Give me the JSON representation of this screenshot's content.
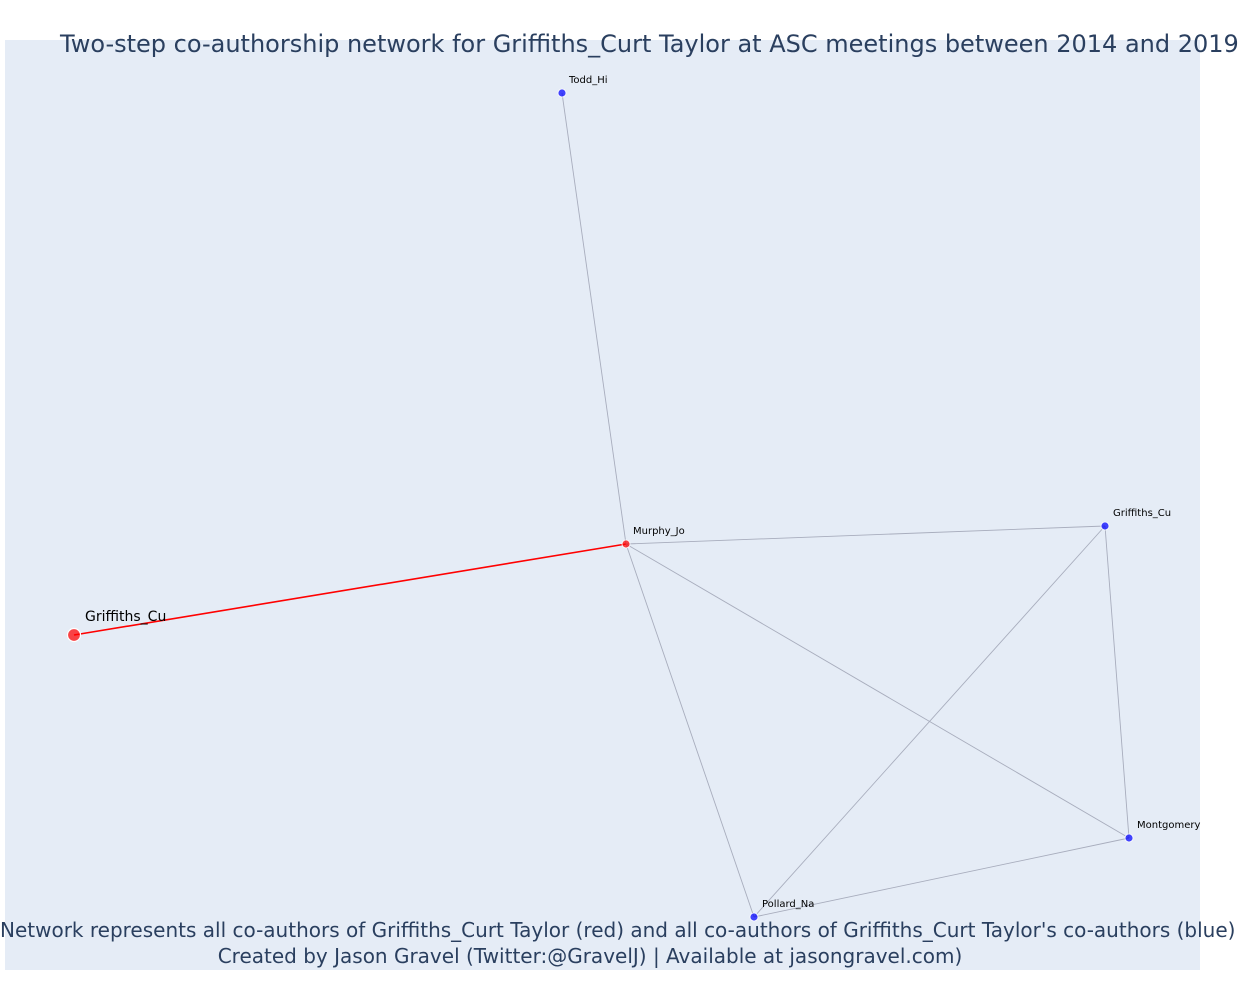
{
  "title": "Two-step co-authorship network for Griffiths_Curt Taylor at ASC meetings between 2014 and 2019",
  "caption": {
    "line1": "Network represents all co-authors of Griffiths_Curt Taylor (red) and all co-authors of Griffiths_Curt Taylor's co-authors (blue)",
    "line2": "Created by Jason Gravel (Twitter:@GravelJ) | Available at jasongravel.com)"
  },
  "colors": {
    "background": "#e5ecf6",
    "ego": "#ff0000",
    "first_degree": "#ff0000",
    "second_degree": "#0000ff",
    "ego_edge": "#ff0000",
    "other_edge": "#a8adbd",
    "text": "#2a3f5f"
  },
  "nodes": [
    {
      "id": "griffiths_ego",
      "label": "Griffiths_Cu",
      "role": "ego"
    },
    {
      "id": "murphy",
      "label": "Murphy_Jo",
      "role": "first_degree"
    },
    {
      "id": "todd",
      "label": "Todd_Hi",
      "role": "second_degree"
    },
    {
      "id": "griffiths_b",
      "label": "Griffiths_Cu",
      "role": "second_degree"
    },
    {
      "id": "montgomery",
      "label": "Montgomery",
      "role": "second_degree"
    },
    {
      "id": "pollard",
      "label": "Pollard_Na",
      "role": "second_degree"
    }
  ],
  "edges": [
    {
      "source": "griffiths_ego",
      "target": "murphy",
      "type": "ego"
    },
    {
      "source": "murphy",
      "target": "todd",
      "type": "other"
    },
    {
      "source": "murphy",
      "target": "griffiths_b",
      "type": "other"
    },
    {
      "source": "murphy",
      "target": "montgomery",
      "type": "other"
    },
    {
      "source": "murphy",
      "target": "pollard",
      "type": "other"
    },
    {
      "source": "griffiths_b",
      "target": "montgomery",
      "type": "other"
    },
    {
      "source": "griffiths_b",
      "target": "pollard",
      "type": "other"
    },
    {
      "source": "montgomery",
      "target": "pollard",
      "type": "other"
    }
  ]
}
